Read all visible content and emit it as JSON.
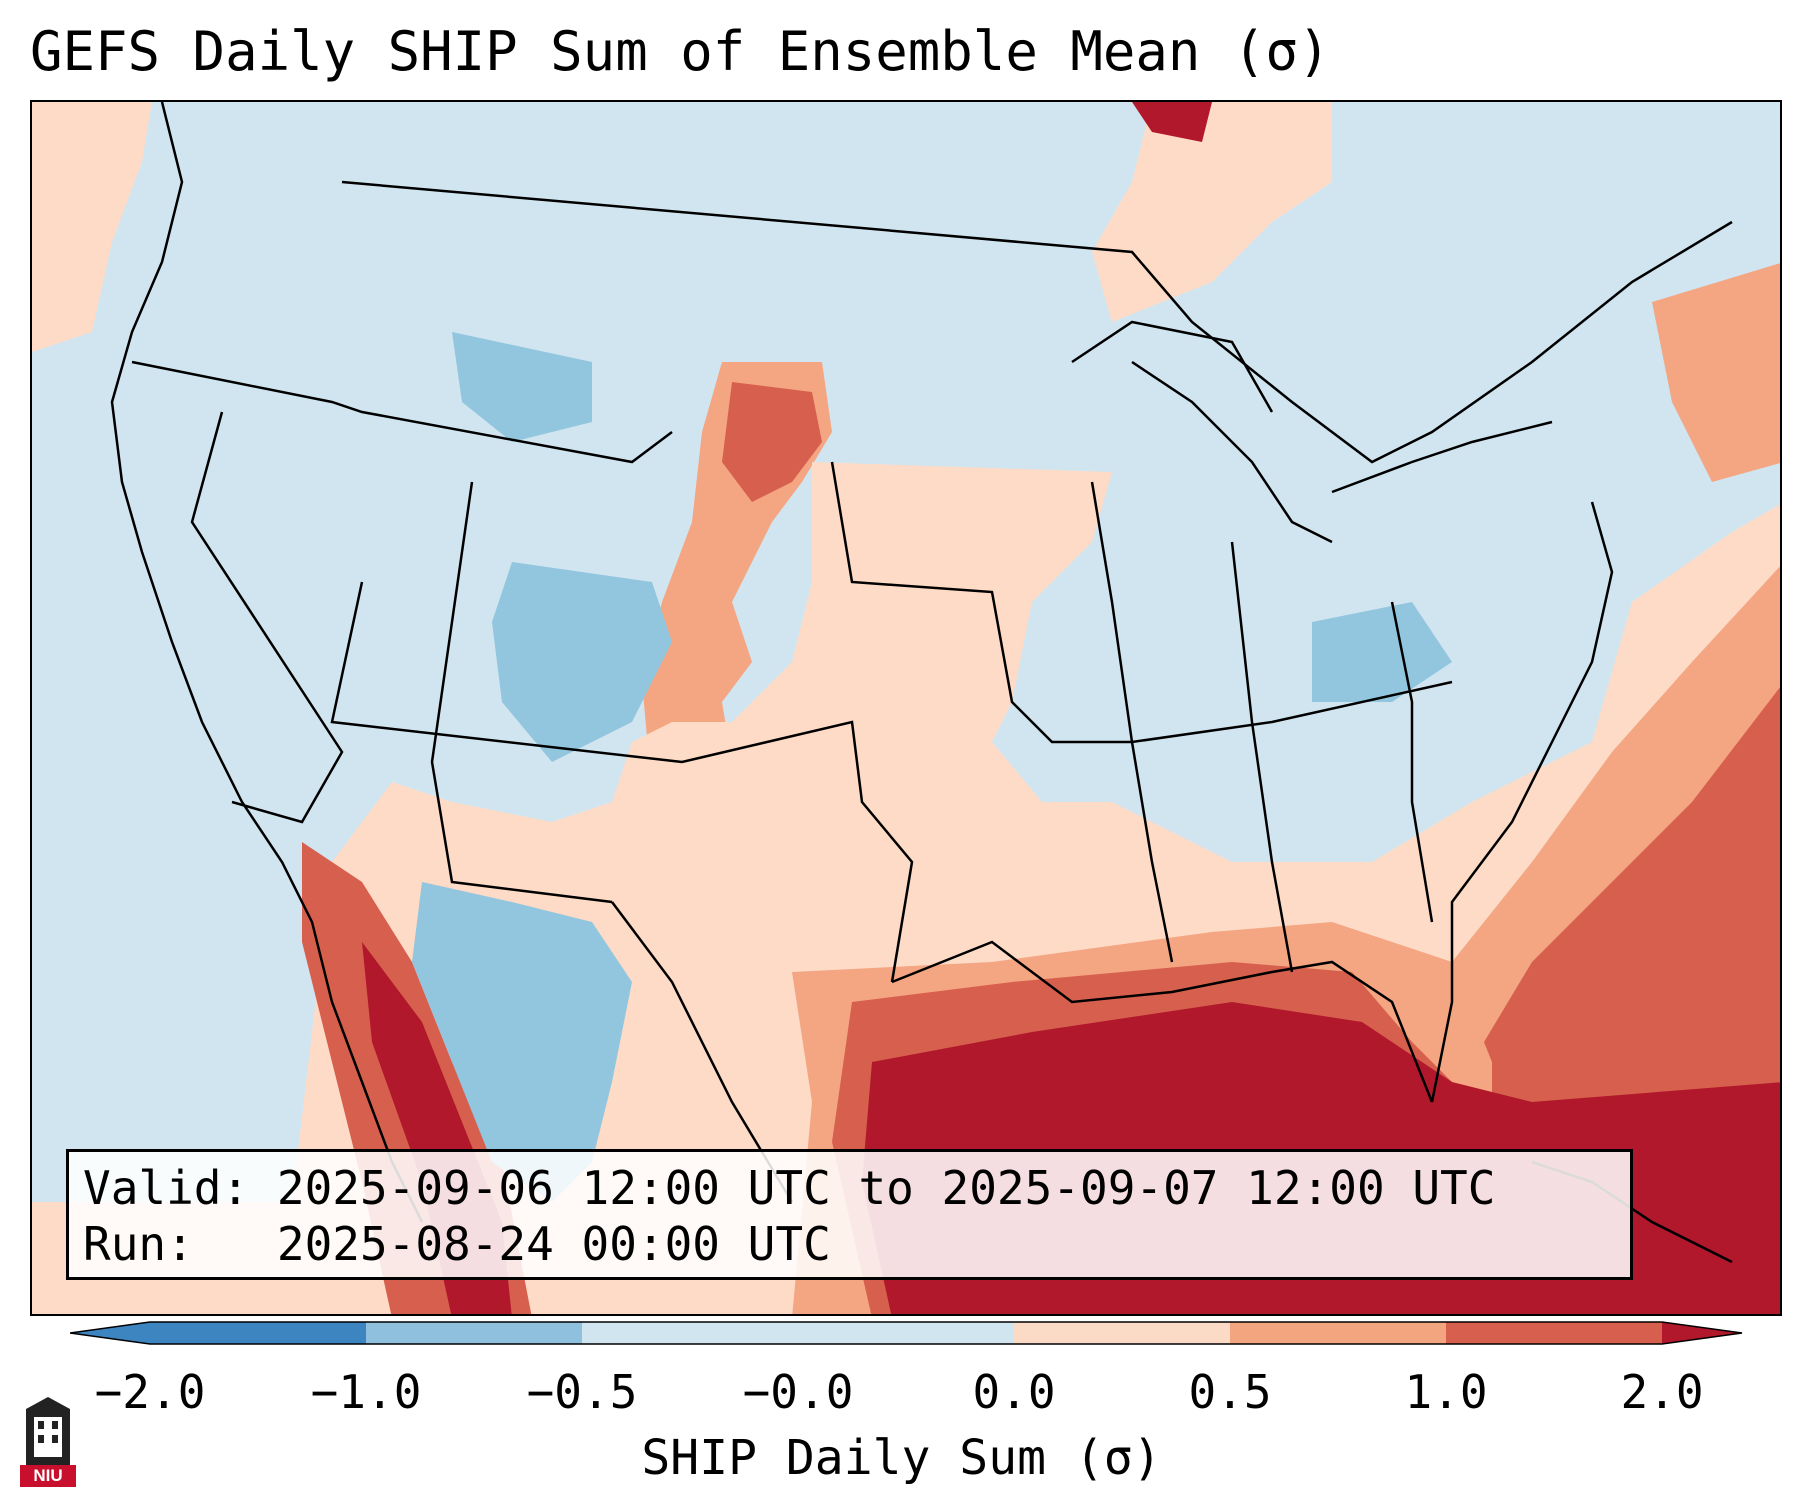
{
  "title": "GEFS Daily SHIP Sum of Ensemble Mean (σ)",
  "info": {
    "valid_label": "Valid:",
    "valid_value": "2025-09-06 12:00 UTC to 2025-09-07 12:00 UTC",
    "run_label": "Run:",
    "run_value": "2025-08-24 00:00 UTC"
  },
  "colorbar": {
    "label": "SHIP Daily Sum (σ)",
    "ticks": [
      "−2.0",
      "−1.0",
      "−0.5",
      "−0.0",
      "0.0",
      "0.5",
      "1.0",
      "2.0"
    ],
    "colors": [
      "#3d85c0",
      "#8fc1de",
      "#d1e5f0",
      "#f7f7f7",
      "#fbdac6",
      "#f3a580",
      "#d6604d",
      "#b2182b"
    ]
  },
  "legend_logo": "NIU",
  "colors": {
    "light_blue": "#d1e5f0",
    "mid_blue": "#92c5de",
    "dark_blue": "#4393c3",
    "light_red": "#fddbc7",
    "mid_red": "#f4a582",
    "dark_red": "#d6604d",
    "deep_red": "#b2182b"
  }
}
